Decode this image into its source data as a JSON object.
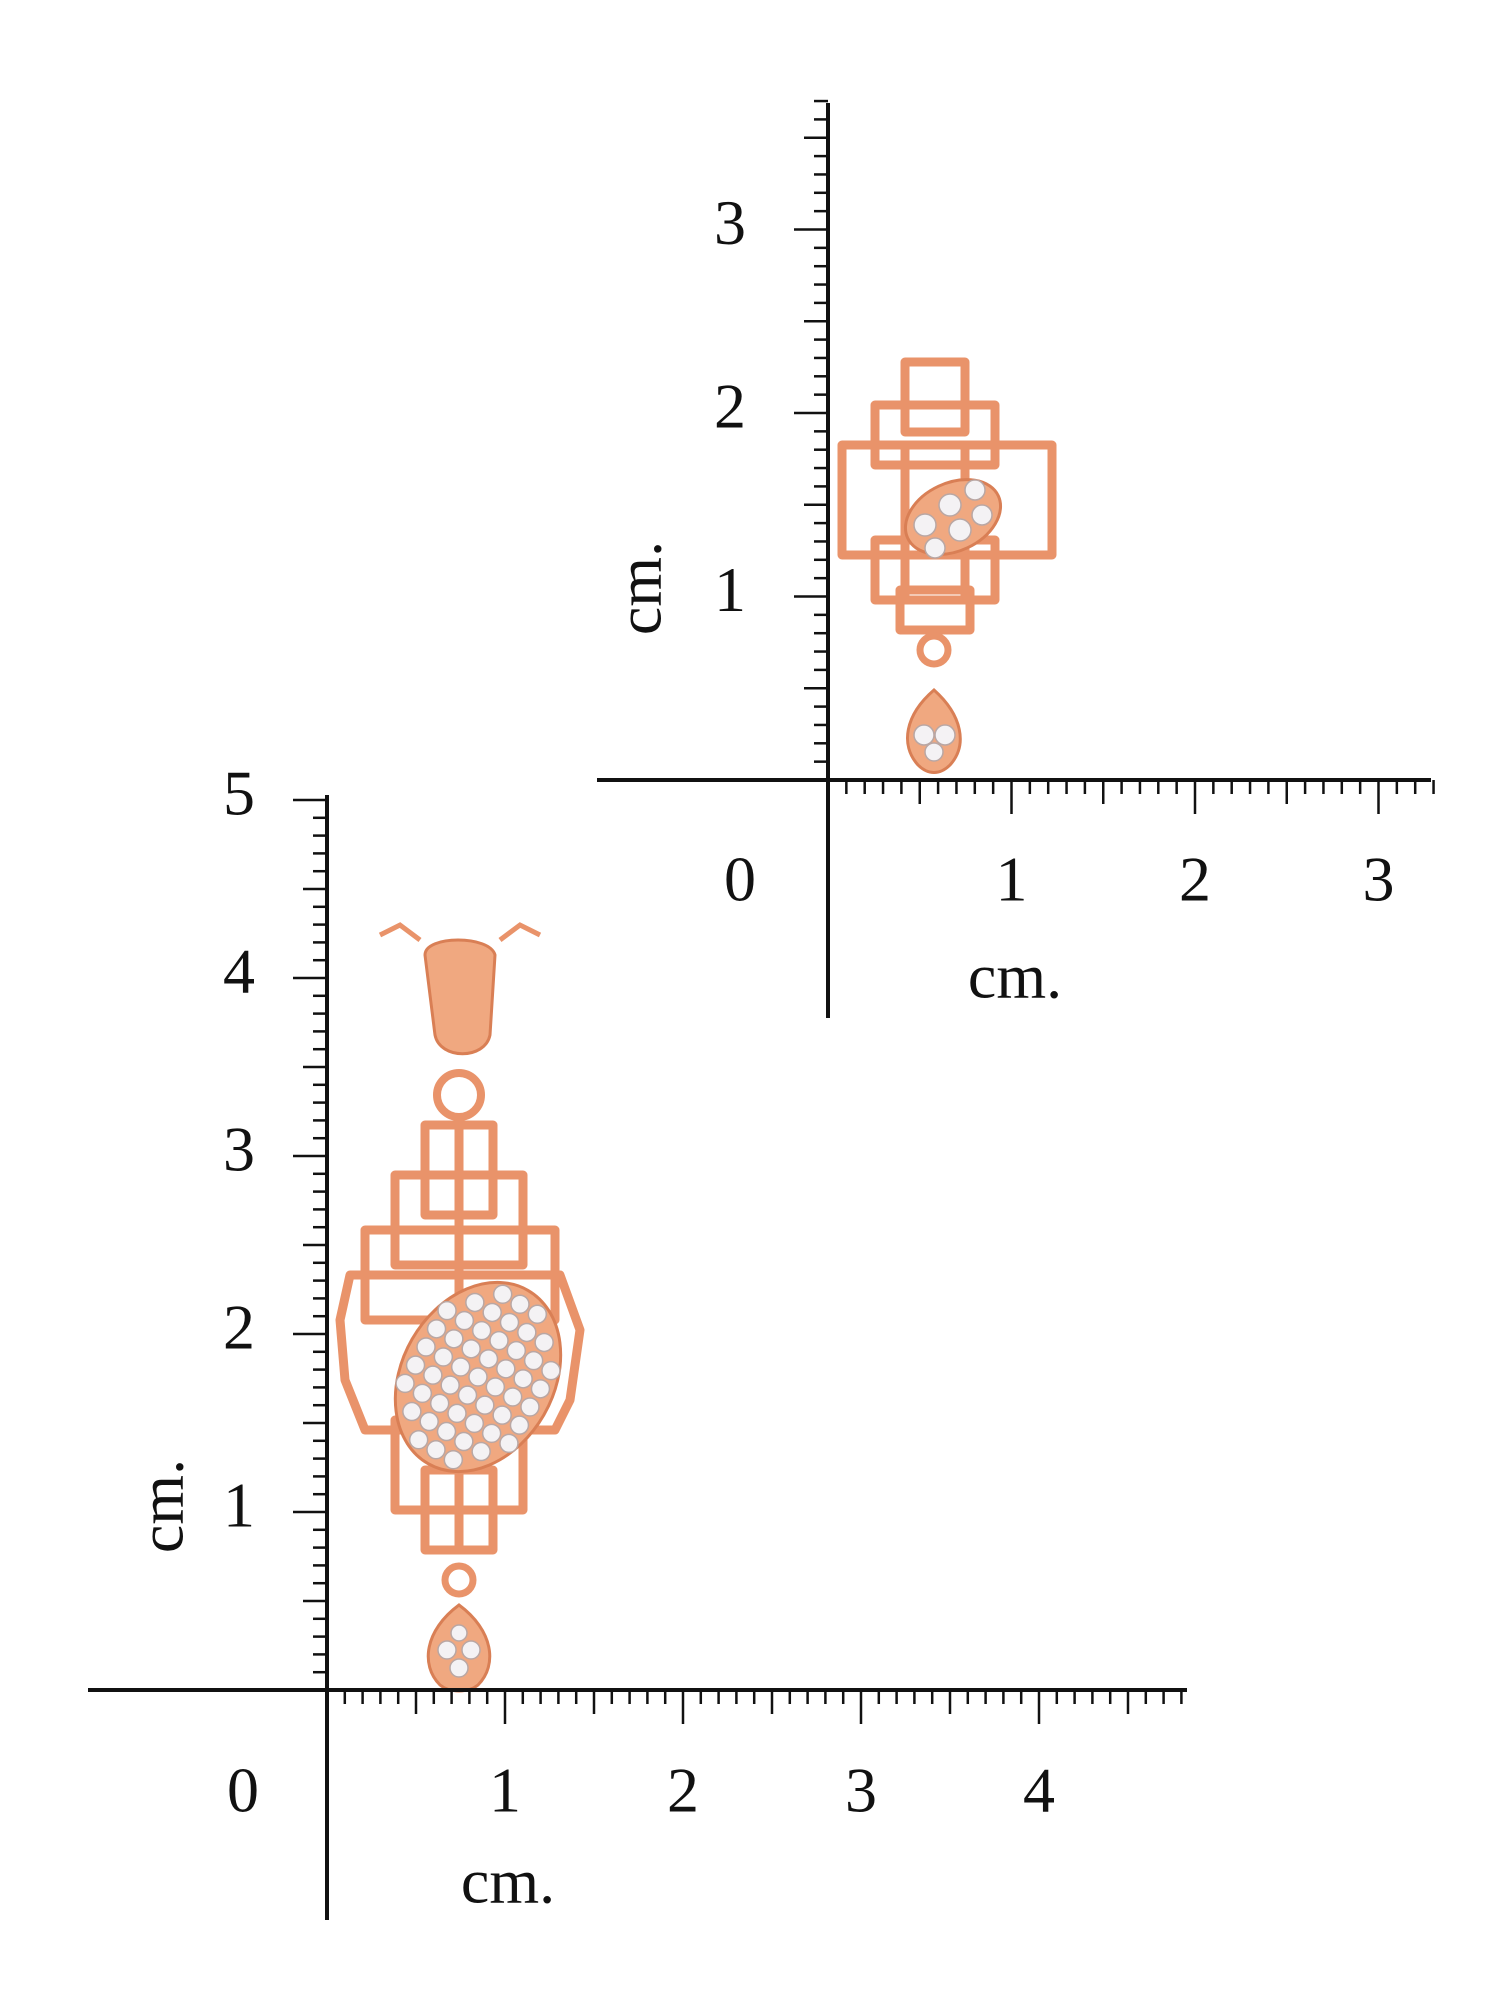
{
  "rulers": [
    {
      "origin": "0",
      "x_labels": [
        "1",
        "2",
        "3"
      ],
      "y_labels": [
        "1",
        "2",
        "3"
      ],
      "x_unit": "cm.",
      "y_unit": "cm."
    },
    {
      "origin": "0",
      "x_labels": [
        "1",
        "2",
        "3",
        "4"
      ],
      "y_labels": [
        "1",
        "2",
        "3",
        "4",
        "5"
      ],
      "x_unit": "cm.",
      "y_unit": "cm."
    }
  ]
}
